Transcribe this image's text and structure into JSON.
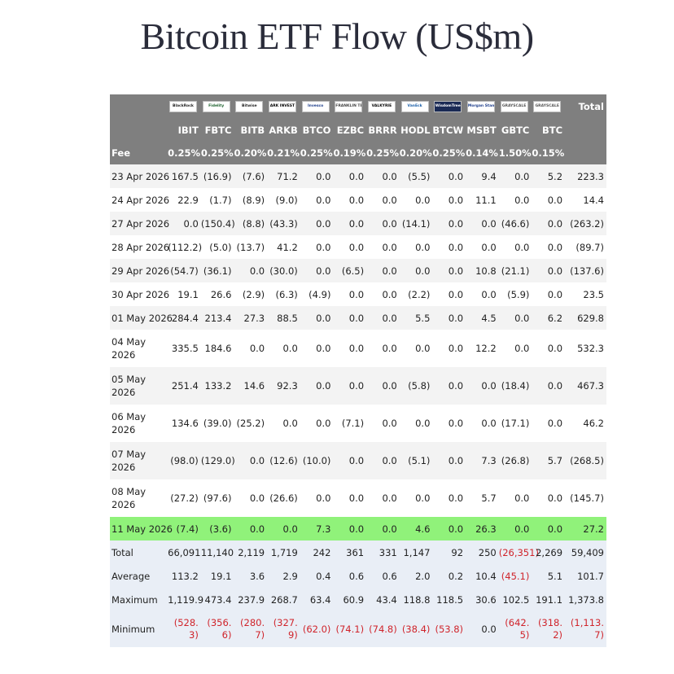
{
  "title": "Bitcoin ETF Flow (US$m)",
  "issuers": [
    "BlackRock",
    "Fidelity",
    "Bitwise",
    "ARK INVEST",
    "Invesco",
    "FRANKLIN TEMPLETON",
    "VALKYRIE",
    "VanEck",
    "WisdomTree",
    "Morgan Stanley",
    "GRAYSCALE",
    "GRAYSCALE"
  ],
  "total_label": "Total",
  "tickers": [
    "IBIT",
    "FBTC",
    "BITB",
    "ARKB",
    "BTCO",
    "EZBC",
    "BRRR",
    "HODL",
    "BTCW",
    "MSBT",
    "GBTC",
    "BTC"
  ],
  "fee_label": "Fee",
  "fees": [
    "0.25%",
    "0.25%",
    "0.20%",
    "0.21%",
    "0.25%",
    "0.19%",
    "0.25%",
    "0.20%",
    "0.25%",
    "0.14%",
    "1.50%",
    "0.15%"
  ],
  "chart_data": {
    "type": "table",
    "title": "Bitcoin ETF Flow (US$m)",
    "columns": [
      "IBIT",
      "FBTC",
      "BITB",
      "ARKB",
      "BTCO",
      "EZBC",
      "BRRR",
      "HODL",
      "BTCW",
      "MSBT",
      "GBTC",
      "BTC",
      "Total"
    ],
    "rows": [
      {
        "date": "23 Apr 2026",
        "values": [
          "167.5",
          "(16.9)",
          "(7.6)",
          "71.2",
          "0.0",
          "0.0",
          "0.0",
          "(5.5)",
          "0.0",
          "9.4",
          "0.0",
          "5.2",
          "223.3"
        ]
      },
      {
        "date": "24 Apr 2026",
        "values": [
          "22.9",
          "(1.7)",
          "(8.9)",
          "(9.0)",
          "0.0",
          "0.0",
          "0.0",
          "0.0",
          "0.0",
          "11.1",
          "0.0",
          "0.0",
          "14.4"
        ]
      },
      {
        "date": "27 Apr 2026",
        "values": [
          "0.0",
          "(150.4)",
          "(8.8)",
          "(43.3)",
          "0.0",
          "0.0",
          "0.0",
          "(14.1)",
          "0.0",
          "0.0",
          "(46.6)",
          "0.0",
          "(263.2)"
        ]
      },
      {
        "date": "28 Apr 2026",
        "values": [
          "(112.2)",
          "(5.0)",
          "(13.7)",
          "41.2",
          "0.0",
          "0.0",
          "0.0",
          "0.0",
          "0.0",
          "0.0",
          "0.0",
          "0.0",
          "(89.7)"
        ]
      },
      {
        "date": "29 Apr 2026",
        "values": [
          "(54.7)",
          "(36.1)",
          "0.0",
          "(30.0)",
          "0.0",
          "(6.5)",
          "0.0",
          "0.0",
          "0.0",
          "10.8",
          "(21.1)",
          "0.0",
          "(137.6)"
        ]
      },
      {
        "date": "30 Apr 2026",
        "values": [
          "19.1",
          "26.6",
          "(2.9)",
          "(6.3)",
          "(4.9)",
          "0.0",
          "0.0",
          "(2.2)",
          "0.0",
          "0.0",
          "(5.9)",
          "0.0",
          "23.5"
        ]
      },
      {
        "date": "01 May 2026",
        "values": [
          "284.4",
          "213.4",
          "27.3",
          "88.5",
          "0.0",
          "0.0",
          "0.0",
          "5.5",
          "0.0",
          "4.5",
          "0.0",
          "6.2",
          "629.8"
        ]
      },
      {
        "date": "04 May 2026",
        "values": [
          "335.5",
          "184.6",
          "0.0",
          "0.0",
          "0.0",
          "0.0",
          "0.0",
          "0.0",
          "0.0",
          "12.2",
          "0.0",
          "0.0",
          "532.3"
        ]
      },
      {
        "date": "05 May 2026",
        "values": [
          "251.4",
          "133.2",
          "14.6",
          "92.3",
          "0.0",
          "0.0",
          "0.0",
          "(5.8)",
          "0.0",
          "0.0",
          "(18.4)",
          "0.0",
          "467.3"
        ]
      },
      {
        "date": "06 May 2026",
        "values": [
          "134.6",
          "(39.0)",
          "(25.2)",
          "0.0",
          "0.0",
          "(7.1)",
          "0.0",
          "0.0",
          "0.0",
          "0.0",
          "(17.1)",
          "0.0",
          "46.2"
        ]
      },
      {
        "date": "07 May 2026",
        "values": [
          "(98.0)",
          "(129.0)",
          "0.0",
          "(12.6)",
          "(10.0)",
          "0.0",
          "0.0",
          "(5.1)",
          "0.0",
          "7.3",
          "(26.8)",
          "5.7",
          "(268.5)"
        ]
      },
      {
        "date": "08 May 2026",
        "values": [
          "(27.2)",
          "(97.6)",
          "0.0",
          "(26.6)",
          "0.0",
          "0.0",
          "0.0",
          "0.0",
          "0.0",
          "5.7",
          "0.0",
          "0.0",
          "(145.7)"
        ]
      },
      {
        "date": "11 May 2026",
        "values": [
          "(7.4)",
          "(3.6)",
          "0.0",
          "0.0",
          "7.3",
          "0.0",
          "0.0",
          "4.6",
          "0.0",
          "26.3",
          "0.0",
          "0.0",
          "27.2"
        ]
      }
    ],
    "summary": [
      {
        "label": "Total",
        "values": [
          "66,091",
          "11,140",
          "2,119",
          "1,719",
          "242",
          "361",
          "331",
          "1,147",
          "92",
          "250",
          "(26,351)",
          "2,269",
          "59,409"
        ]
      },
      {
        "label": "Average",
        "values": [
          "113.2",
          "19.1",
          "3.6",
          "2.9",
          "0.4",
          "0.6",
          "0.6",
          "2.0",
          "0.2",
          "10.4",
          "(45.1)",
          "5.1",
          "101.7"
        ]
      },
      {
        "label": "Maximum",
        "values": [
          "1,119.9",
          "473.4",
          "237.9",
          "268.7",
          "63.4",
          "60.9",
          "43.4",
          "118.8",
          "118.5",
          "30.6",
          "102.5",
          "191.1",
          "1,373.8"
        ]
      },
      {
        "label": "Minimum",
        "values": [
          "(528.3)",
          "(356.6)",
          "(280.7)",
          "(327.9)",
          "(62.0)",
          "(74.1)",
          "(74.8)",
          "(38.4)",
          "(53.8)",
          "0.0",
          "(642.5)",
          "(318.2)",
          "(1,113.7)"
        ]
      }
    ],
    "highlight_row": "11 May 2026",
    "colors": {
      "header": "#7f7f7f",
      "negative": "#d0242b",
      "highlight": "#90f27a",
      "summary": "#e9eef6",
      "stripe": "#f3f3f3"
    }
  }
}
